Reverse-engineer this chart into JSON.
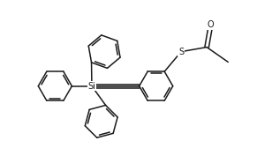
{
  "bg_color": "#ffffff",
  "line_color": "#1a1a1a",
  "line_width": 1.1,
  "fig_width": 2.91,
  "fig_height": 1.85,
  "dpi": 100,
  "si_label": "Si",
  "s_label": "S",
  "o_label": "O",
  "xlim": [
    -2.8,
    5.2
  ],
  "ylim": [
    -2.5,
    2.8
  ]
}
